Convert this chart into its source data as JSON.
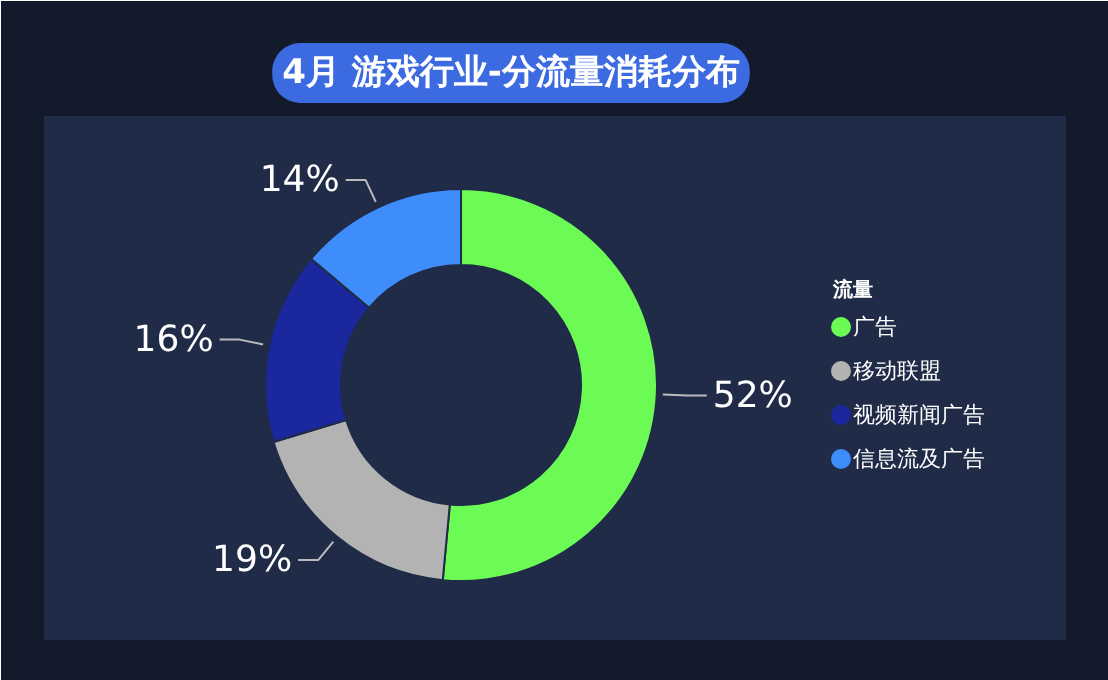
{
  "chart_data": {
    "type": "donut",
    "title": "4月 游戏行业-分流量消耗分布",
    "legend_title": "流量",
    "categories": [
      "广告",
      "移动联盟",
      "视频新闻广告",
      "信息流及广告"
    ],
    "values": [
      52,
      19,
      16,
      14
    ],
    "colors": [
      "#6cfb55",
      "#b3b3b3",
      "#1b279c",
      "#3f8cfb"
    ],
    "value_labels": [
      "52%",
      "19%",
      "16%",
      "14%"
    ],
    "legend": "right"
  }
}
